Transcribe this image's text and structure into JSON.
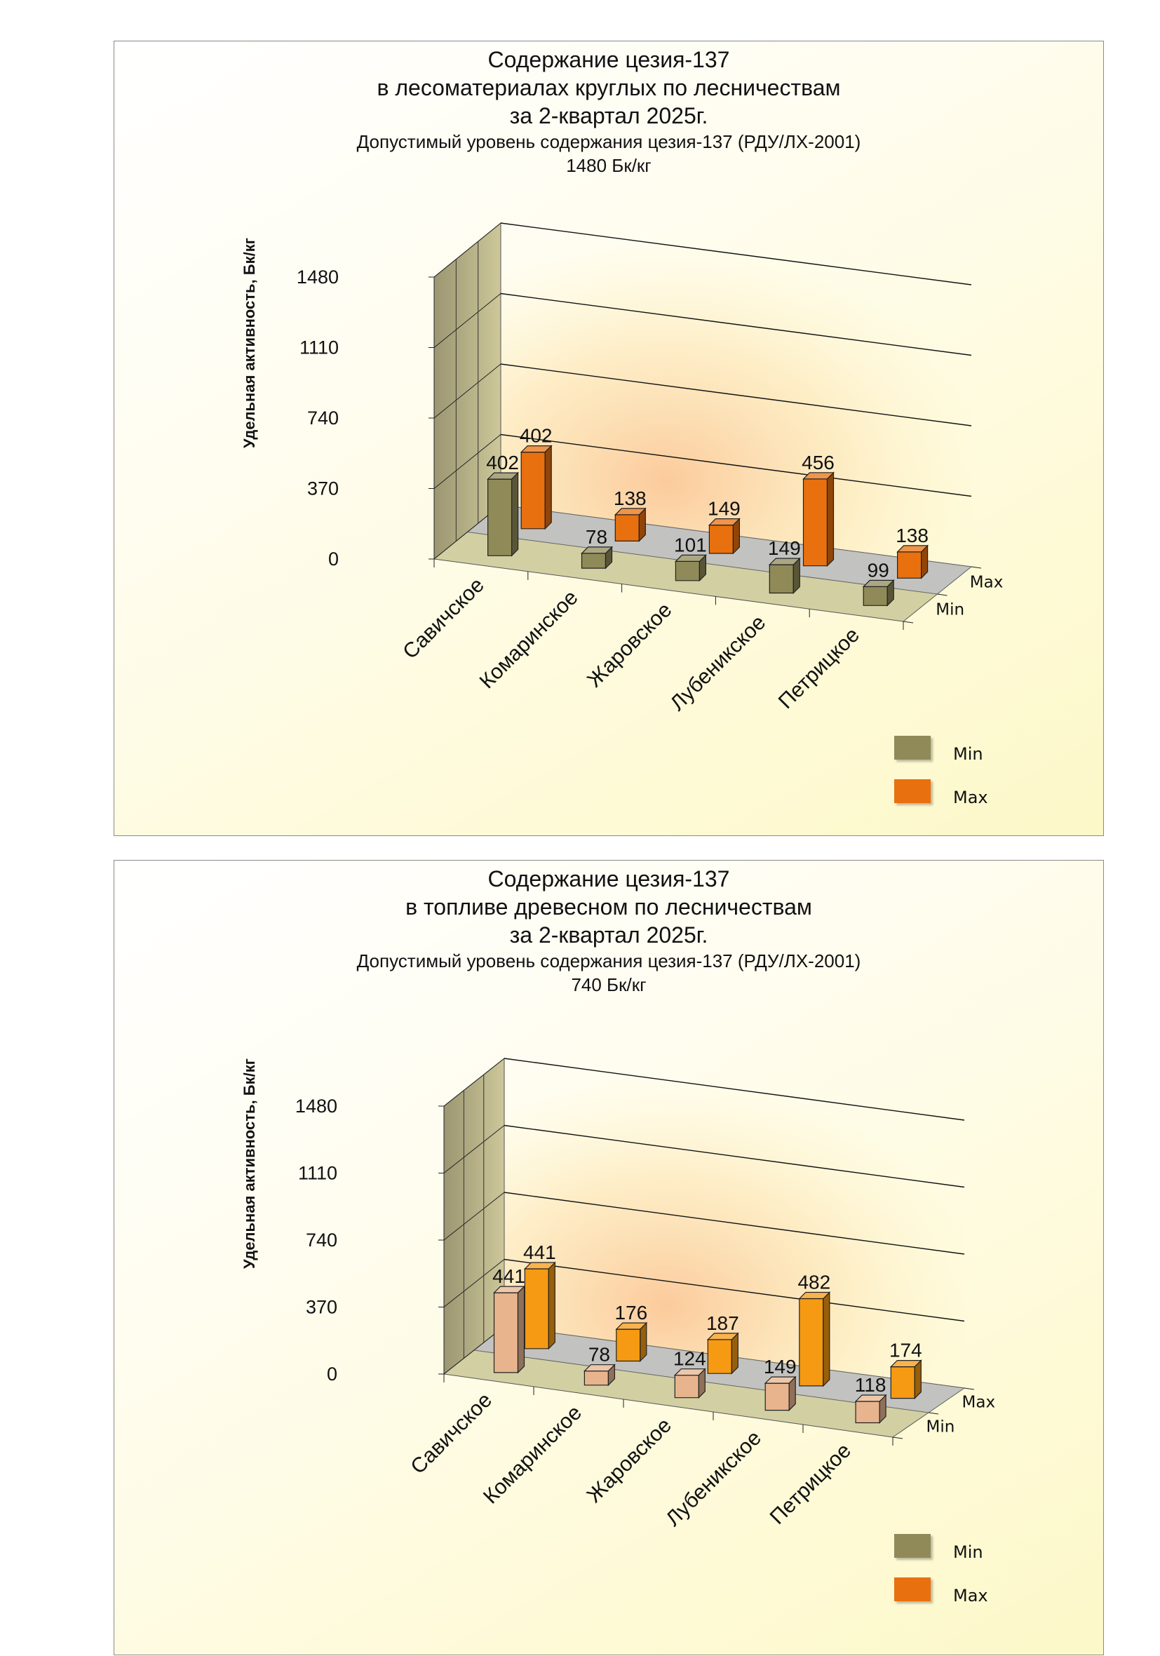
{
  "charts": [
    {
      "title_lines": [
        "Содержание цезия-137",
        "в лесоматериалах круглых по лесничествам",
        "за  2-квартал 2025г."
      ],
      "subtitle_lines": [
        "Допустимый уровень содержания цезия-137 (РДУ/ЛХ-2001)",
        "1480 Бк/кг"
      ],
      "legend": [
        {
          "label": "Min",
          "color": "#8f8a58"
        },
        {
          "label": "Max",
          "color": "#e8700f"
        }
      ]
    },
    {
      "title_lines": [
        "Содержание цезия-137",
        "в топливе древесном по лесничествам",
        "за  2-квартал 2025г."
      ],
      "subtitle_lines": [
        "Допустимый уровень содержания цезия-137 (РДУ/ЛХ-2001)",
        "740 Бк/кг"
      ],
      "legend": [
        {
          "label": "Min",
          "color": "#8f8a58"
        },
        {
          "label": "Max",
          "color": "#e8700f"
        }
      ]
    }
  ],
  "chart_data": [
    {
      "type": "bar",
      "title": "Содержание цезия-137 в лесоматериалах круглых по лесничествам за  2-квартал 2025г.",
      "ylabel": "Удельная активность, Бк/кг",
      "categories": [
        "Савичское",
        "Комаринское",
        "Жаровское",
        "Лубеникское",
        "Петрицкое"
      ],
      "yticks": [
        "0",
        "370",
        "740",
        "1110",
        "1480"
      ],
      "ylim": [
        0,
        1480
      ],
      "depth_labels": [
        "Max",
        "Min"
      ],
      "series": [
        {
          "name": "Min",
          "values": [
            402,
            78,
            101,
            149,
            99
          ],
          "color": "#8f8a58"
        },
        {
          "name": "Max",
          "values": [
            402,
            138,
            149,
            456,
            138
          ],
          "color": "#e8700f"
        }
      ],
      "grid": true,
      "legend_position": "bottom-right"
    },
    {
      "type": "bar",
      "title": "Содержание цезия-137 в топливе древесном по лесничествам за  2-квартал 2025г.",
      "ylabel": "Удельная активность, Бк/кг",
      "categories": [
        "Савичское",
        "Комаринское",
        "Жаровское",
        "Лубеникское",
        "Петрицкое"
      ],
      "yticks": [
        "0",
        "370",
        "740",
        "1110",
        "1480"
      ],
      "ylim": [
        0,
        1480
      ],
      "depth_labels": [
        "Max",
        "Min"
      ],
      "series": [
        {
          "name": "Min",
          "values": [
            441,
            78,
            124,
            149,
            118
          ],
          "color": "#e7b48e"
        },
        {
          "name": "Max",
          "values": [
            441,
            176,
            187,
            482,
            174
          ],
          "color": "#f59a12"
        }
      ],
      "grid": true,
      "legend_position": "bottom-right"
    }
  ]
}
